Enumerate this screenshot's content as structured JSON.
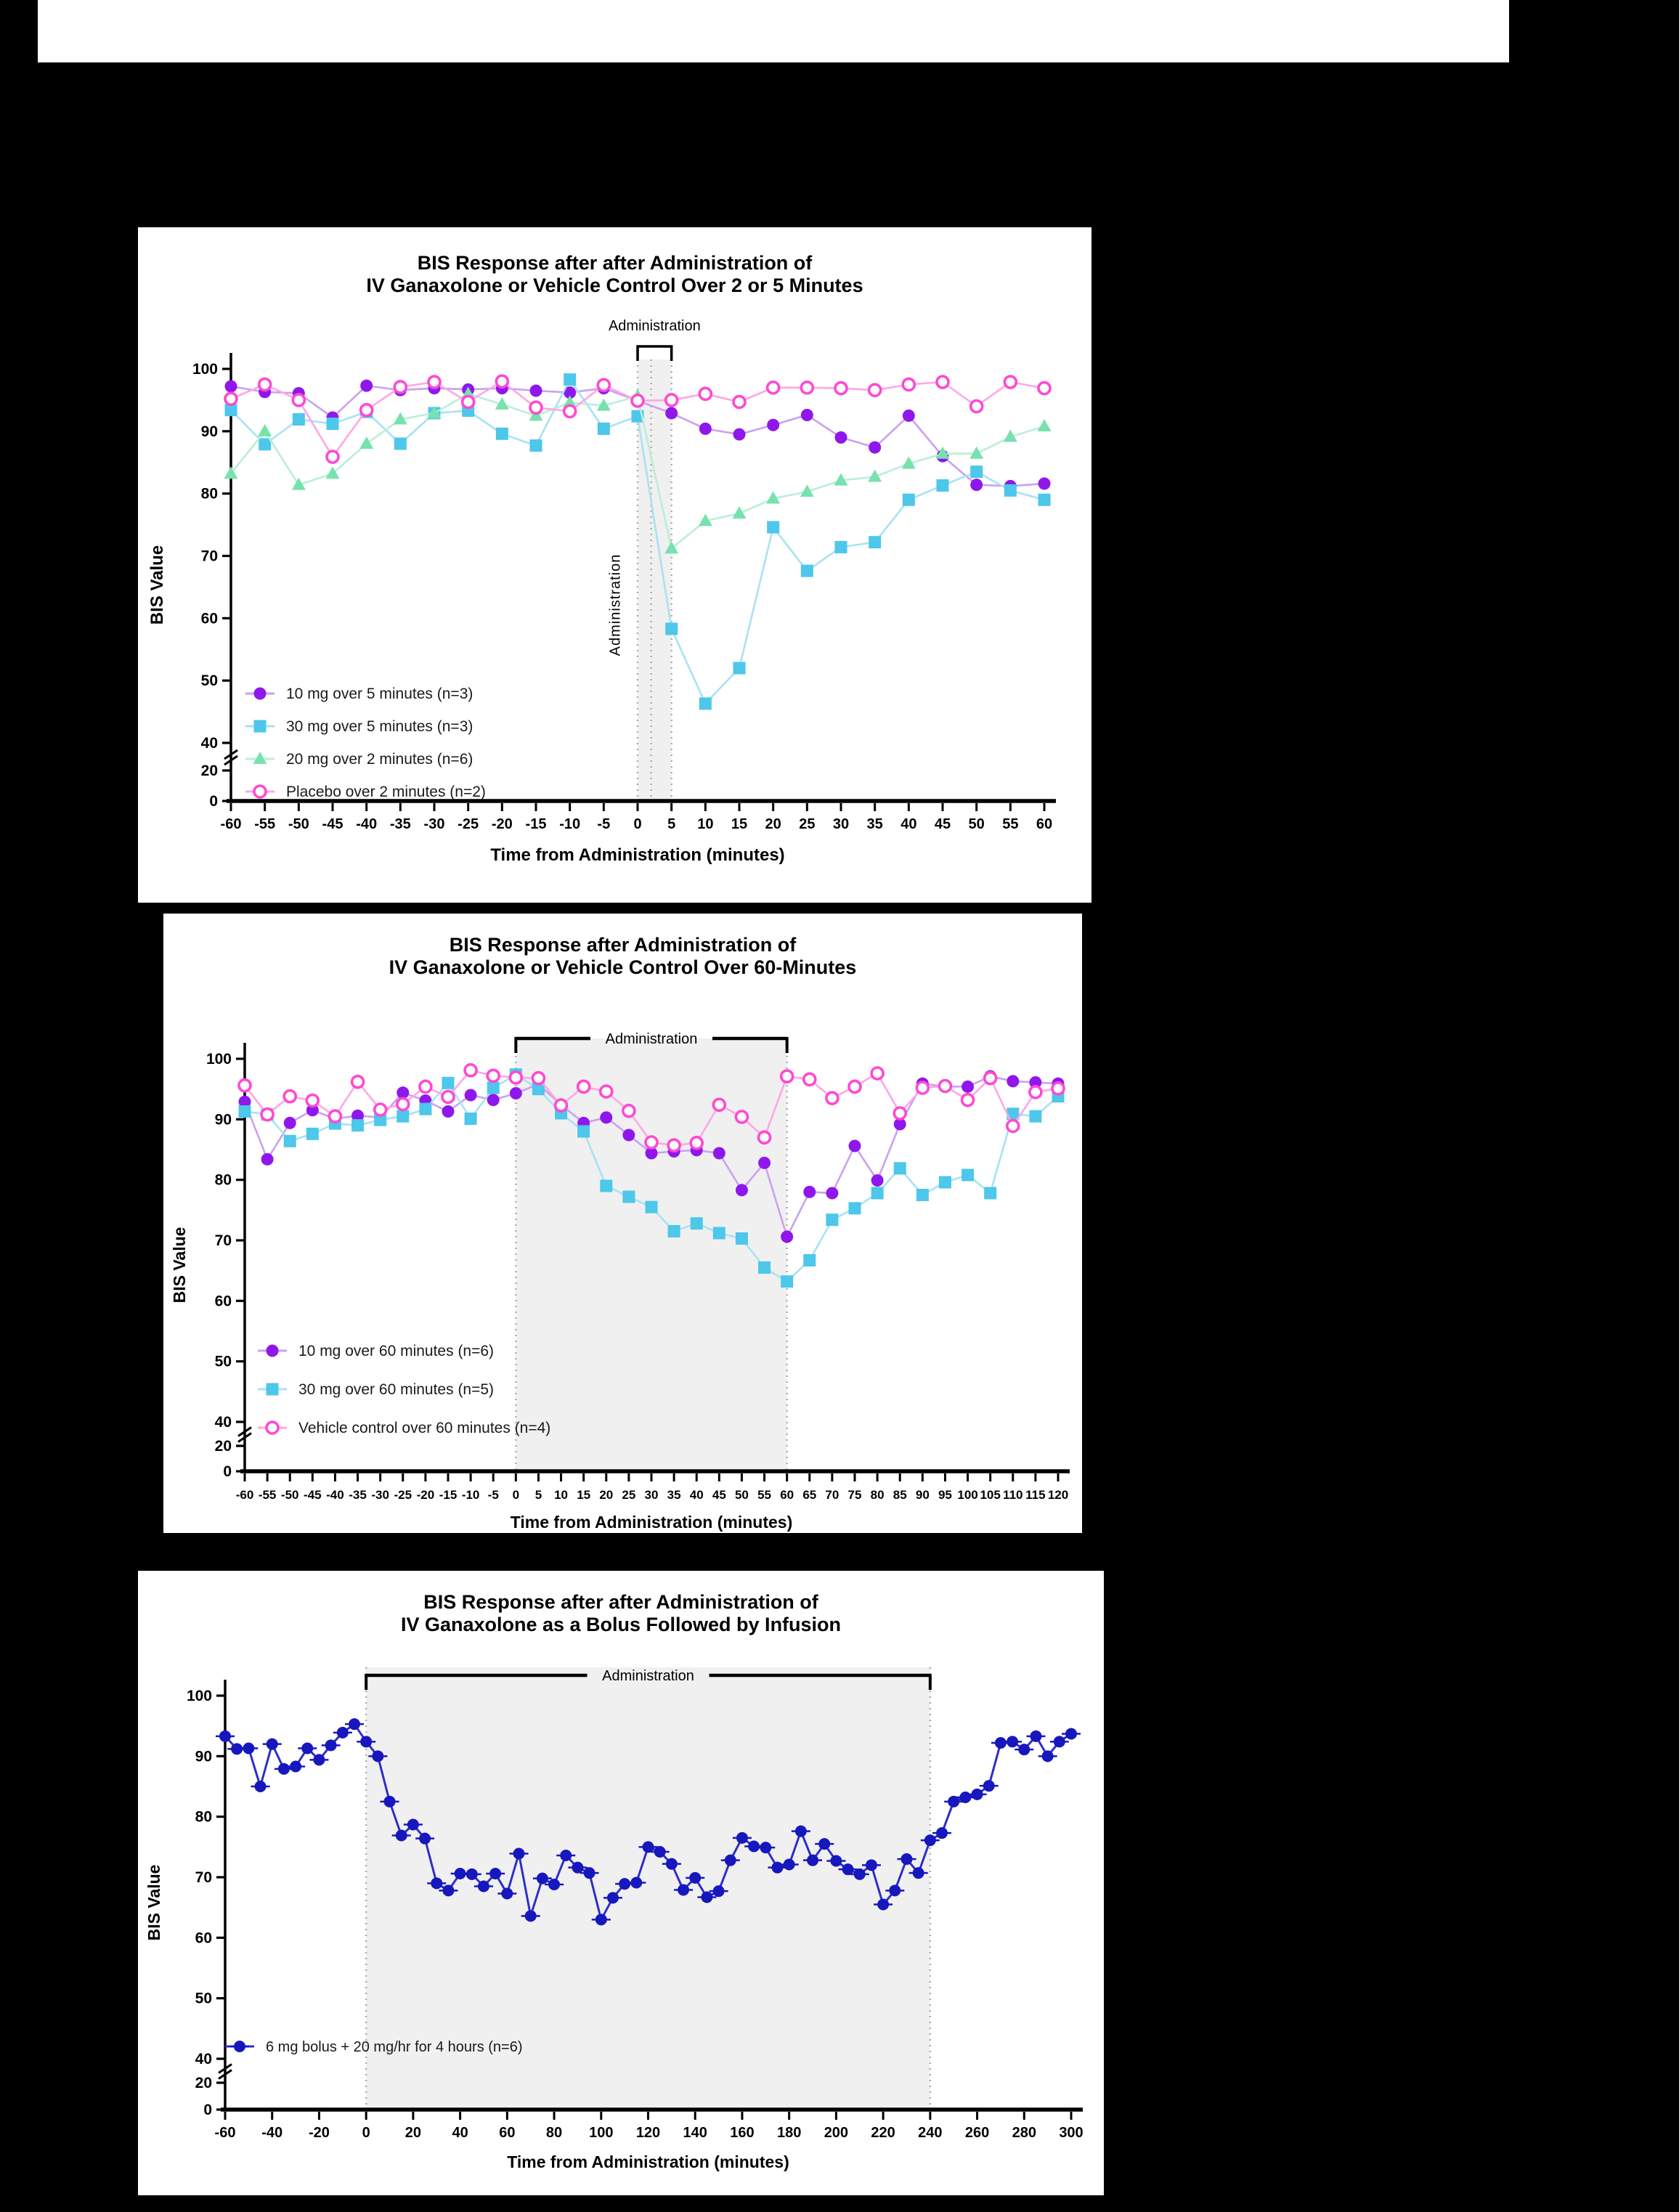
{
  "page": {
    "background_color": "#000000",
    "panel_color": "#ffffff"
  },
  "chart_data": [
    {
      "type": "line",
      "title_line1": "BIS Response after after Administration of",
      "title_line2": "IV Ganaxolone or Vehicle Control Over 2 or 5 Minutes",
      "xlabel": "Time from Administration  (minutes)",
      "ylabel": "BIS Value",
      "xlim": [
        -60,
        60
      ],
      "x": [
        -60,
        -55,
        -50,
        -45,
        -40,
        -35,
        -30,
        -25,
        -20,
        -15,
        -10,
        -5,
        0,
        5,
        10,
        15,
        20,
        25,
        30,
        35,
        40,
        45,
        50,
        55,
        60
      ],
      "y_axis": {
        "main_ticks": [
          100,
          90,
          80,
          70,
          60,
          50,
          40
        ],
        "break_ticks": [
          20,
          0
        ],
        "axis_break": true
      },
      "administration": {
        "label": "Administration",
        "window": [
          0,
          5
        ],
        "inner_line": 2,
        "vertical_inplot_label": "Administration",
        "bracket_style": "narrow"
      },
      "legend_position": "inside-lower-left",
      "series": [
        {
          "name": "10 mg over 5 minutes (n=3)",
          "marker": "circle",
          "color": "#8F17EC",
          "line_color": "#C9A1F2",
          "values": [
            97.2,
            96.3,
            96.1,
            92.2,
            97.3,
            96.6,
            96.9,
            96.7,
            96.9,
            96.5,
            96.2,
            96.9,
            94.9,
            92.9,
            90.4,
            89.5,
            91.0,
            92.6,
            89.0,
            87.4,
            92.5,
            86.0,
            81.4,
            81.2,
            81.6
          ]
        },
        {
          "name": "30 mg over 5 minutes (n=3)",
          "marker": "square",
          "color": "#4DC7EA",
          "line_color": "#A9E2F3",
          "values": [
            93.4,
            87.9,
            91.9,
            91.2,
            93.1,
            88.0,
            92.9,
            93.3,
            89.6,
            87.7,
            98.3,
            90.4,
            92.4,
            58.3,
            46.3,
            52.0,
            74.6,
            67.6,
            71.4,
            72.2,
            79.0,
            81.3,
            83.5,
            80.5,
            79.0
          ]
        },
        {
          "name": "20 mg over 2 minutes (n=6)",
          "marker": "triangle",
          "color": "#77E2AE",
          "line_color": "#B9EFD6",
          "values": [
            83.2,
            90.0,
            81.4,
            83.2,
            88.0,
            91.9,
            92.9,
            96.0,
            94.3,
            92.5,
            94.6,
            94.1,
            95.6,
            71.2,
            75.6,
            76.8,
            79.2,
            80.3,
            82.1,
            82.7,
            84.8,
            86.4,
            86.4,
            89.1,
            90.8
          ]
        },
        {
          "name": "Placebo over 2 minutes (n=2)",
          "marker": "circle-open",
          "color": "#FF49D0",
          "line_color": "#FFA6E6",
          "values": [
            95.2,
            97.5,
            95.0,
            85.9,
            93.4,
            97.1,
            97.9,
            94.7,
            98.0,
            93.8,
            93.2,
            97.4,
            94.9,
            95.0,
            96.0,
            94.7,
            97.0,
            97.0,
            96.9,
            96.6,
            97.5,
            97.9,
            94.0,
            97.9,
            96.9
          ]
        }
      ]
    },
    {
      "type": "line",
      "title_line1": "BIS Response after Administration of",
      "title_line2": "IV Ganaxolone or Vehicle Control Over 60-Minutes",
      "xlabel": "Time from Administration (minutes)",
      "ylabel": "BIS Value",
      "xlim": [
        -60,
        120
      ],
      "x": [
        -60,
        -55,
        -50,
        -45,
        -40,
        -35,
        -30,
        -25,
        -20,
        -15,
        -10,
        -5,
        0,
        5,
        10,
        15,
        20,
        25,
        30,
        35,
        40,
        45,
        50,
        55,
        60,
        65,
        70,
        75,
        80,
        85,
        90,
        95,
        100,
        105,
        110,
        115,
        120
      ],
      "y_axis": {
        "main_ticks": [
          100,
          90,
          80,
          70,
          60,
          50,
          40
        ],
        "break_ticks": [
          20,
          0
        ],
        "axis_break": true
      },
      "administration": {
        "label": "Administration",
        "window": [
          0,
          60
        ],
        "bracket_style": "wide"
      },
      "legend_position": "inside-lower-left",
      "series": [
        {
          "name": "10 mg over 60 minutes (n=6)",
          "marker": "circle",
          "color": "#8F17EC",
          "line_color": "#C9A1F2",
          "values": [
            92.9,
            83.4,
            89.4,
            91.5,
            90.1,
            90.6,
            90.3,
            94.4,
            93.1,
            91.3,
            94.0,
            93.2,
            94.3,
            95.8,
            92.4,
            89.4,
            90.3,
            87.4,
            84.4,
            84.7,
            84.9,
            84.4,
            78.3,
            82.8,
            70.6,
            78.0,
            77.8,
            85.6,
            79.9,
            89.2,
            95.9,
            95.4,
            95.4,
            97.1,
            96.3,
            96.1,
            95.9
          ]
        },
        {
          "name": "30 mg over 60 minutes (n=5)",
          "marker": "square",
          "color": "#4DC7EA",
          "line_color": "#A9E2F3",
          "values": [
            91.3,
            90.8,
            86.4,
            87.6,
            89.3,
            89.0,
            89.9,
            90.5,
            91.7,
            96.0,
            90.1,
            95.2,
            97.4,
            95.0,
            91.0,
            88.0,
            79.0,
            77.2,
            75.5,
            71.5,
            72.8,
            71.2,
            70.3,
            65.5,
            63.2,
            66.7,
            73.4,
            75.3,
            77.8,
            81.9,
            77.5,
            79.6,
            80.8,
            77.8,
            90.9,
            90.5,
            93.8
          ]
        },
        {
          "name": "Vehicle control over 60 minutes (n=4)",
          "marker": "circle-open",
          "color": "#FF49D0",
          "line_color": "#FFA6E6",
          "values": [
            95.6,
            90.8,
            93.8,
            93.1,
            90.5,
            96.2,
            91.6,
            92.5,
            95.4,
            93.7,
            98.1,
            97.2,
            96.9,
            96.8,
            92.3,
            95.4,
            94.6,
            91.4,
            86.2,
            85.7,
            86.1,
            92.4,
            90.4,
            87.0,
            97.1,
            96.6,
            93.5,
            95.4,
            97.6,
            91.0,
            95.2,
            95.5,
            93.2,
            96.8,
            88.9,
            94.5,
            95.1
          ]
        }
      ]
    },
    {
      "type": "line",
      "title_line1": "BIS Response after after Administration of",
      "title_line2": "IV Ganaxolone as a Bolus Followed by Infusion",
      "xlabel": "Time from Administration  (minutes)",
      "ylabel": "BIS Value",
      "xlim": [
        -60,
        300
      ],
      "x_tick_step": 20,
      "x": [
        -60,
        -55,
        -50,
        -45,
        -40,
        -35,
        -30,
        -25,
        -20,
        -15,
        -10,
        -5,
        0,
        5,
        10,
        15,
        20,
        25,
        30,
        35,
        40,
        45,
        50,
        55,
        60,
        65,
        70,
        75,
        80,
        85,
        90,
        95,
        100,
        105,
        110,
        115,
        120,
        125,
        130,
        135,
        140,
        145,
        150,
        155,
        160,
        165,
        170,
        175,
        180,
        185,
        190,
        195,
        200,
        205,
        210,
        215,
        220,
        225,
        230,
        235,
        240,
        245,
        250,
        255,
        260,
        265,
        270,
        275,
        280,
        285,
        290,
        295,
        300
      ],
      "y_axis": {
        "main_ticks": [
          100,
          90,
          80,
          70,
          60,
          50,
          40
        ],
        "break_ticks": [
          20,
          0
        ],
        "axis_break": true
      },
      "administration": {
        "label": "Administration",
        "window": [
          0,
          240
        ],
        "bracket_style": "wide"
      },
      "legend_position": "inside-lower-left",
      "series": [
        {
          "name": "6 mg bolus + 20 mg/hr for 4 hours (n=6)",
          "marker": "circle-dash",
          "color": "#1717BE",
          "line_color": "#2E2EC8",
          "values": [
            93.3,
            91.2,
            91.3,
            85.0,
            92.0,
            87.9,
            88.3,
            91.3,
            89.4,
            91.8,
            93.9,
            95.3,
            92.4,
            90.0,
            82.5,
            76.9,
            78.7,
            76.4,
            69.0,
            67.8,
            70.6,
            70.5,
            68.5,
            70.6,
            67.3,
            73.9,
            63.6,
            69.8,
            68.8,
            73.6,
            71.6,
            70.7,
            63.0,
            66.6,
            68.9,
            69.1,
            75.0,
            74.2,
            72.2,
            67.9,
            69.9,
            66.7,
            67.7,
            72.8,
            76.5,
            75.1,
            74.9,
            71.6,
            72.1,
            77.6,
            72.8,
            75.5,
            72.7,
            71.3,
            70.5,
            72.0,
            65.5,
            67.8,
            73.0,
            70.7,
            76.1,
            77.3,
            82.5,
            83.2,
            83.7,
            85.1,
            92.2,
            92.4,
            91.1,
            93.3,
            90.0,
            92.4,
            93.7
          ]
        }
      ]
    }
  ]
}
